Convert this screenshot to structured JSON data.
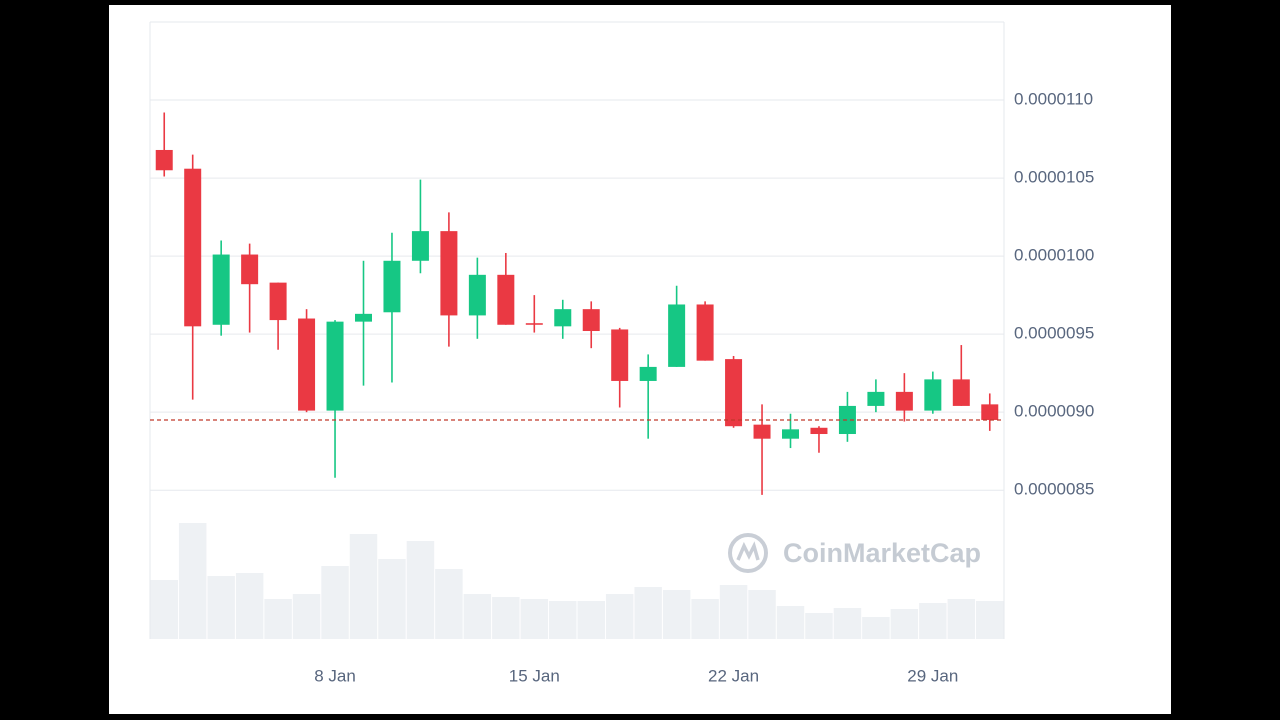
{
  "chart_data": {
    "type": "candlestick",
    "x": [
      "2 Jan",
      "3 Jan",
      "4 Jan",
      "5 Jan",
      "6 Jan",
      "7 Jan",
      "8 Jan",
      "9 Jan",
      "10 Jan",
      "11 Jan",
      "12 Jan",
      "13 Jan",
      "14 Jan",
      "15 Jan",
      "16 Jan",
      "17 Jan",
      "18 Jan",
      "19 Jan",
      "20 Jan",
      "21 Jan",
      "22 Jan",
      "23 Jan",
      "24 Jan",
      "25 Jan",
      "26 Jan",
      "27 Jan",
      "28 Jan",
      "29 Jan",
      "30 Jan",
      "31 Jan"
    ],
    "open": [
      1.068e-05,
      1.056e-05,
      9.56e-06,
      1.001e-05,
      9.83e-06,
      9.6e-06,
      9.01e-06,
      9.58e-06,
      9.64e-06,
      9.97e-06,
      1.016e-05,
      9.62e-06,
      9.88e-06,
      9.57e-06,
      9.55e-06,
      9.66e-06,
      9.53e-06,
      9.2e-06,
      9.29e-06,
      9.69e-06,
      9.34e-06,
      8.92e-06,
      8.83e-06,
      8.9e-06,
      8.86e-06,
      9.04e-06,
      9.13e-06,
      9.01e-06,
      9.21e-06,
      9.05e-06
    ],
    "high": [
      1.092e-05,
      1.065e-05,
      1.01e-05,
      1.008e-05,
      9.83e-06,
      9.66e-06,
      9.59e-06,
      9.97e-06,
      1.015e-05,
      1.049e-05,
      1.028e-05,
      9.99e-06,
      1.002e-05,
      9.75e-06,
      9.72e-06,
      9.71e-06,
      9.54e-06,
      9.37e-06,
      9.81e-06,
      9.71e-06,
      9.36e-06,
      9.05e-06,
      8.99e-06,
      8.91e-06,
      9.13e-06,
      9.21e-06,
      9.25e-06,
      9.26e-06,
      9.43e-06,
      9.12e-06
    ],
    "low": [
      1.051e-05,
      9.08e-06,
      9.49e-06,
      9.51e-06,
      9.4e-06,
      9e-06,
      8.58e-06,
      9.17e-06,
      9.19e-06,
      9.89e-06,
      9.42e-06,
      9.47e-06,
      9.56e-06,
      9.51e-06,
      9.47e-06,
      9.41e-06,
      9.03e-06,
      8.83e-06,
      9.29e-06,
      9.33e-06,
      8.9e-06,
      8.47e-06,
      8.77e-06,
      8.74e-06,
      8.81e-06,
      9e-06,
      8.94e-06,
      8.99e-06,
      9.04e-06,
      8.88e-06
    ],
    "close": [
      1.055e-05,
      9.55e-06,
      1.001e-05,
      9.82e-06,
      9.59e-06,
      9.01e-06,
      9.58e-06,
      9.63e-06,
      9.97e-06,
      1.016e-05,
      9.62e-06,
      9.88e-06,
      9.56e-06,
      9.56e-06,
      9.66e-06,
      9.52e-06,
      9.2e-06,
      9.29e-06,
      9.69e-06,
      9.33e-06,
      8.91e-06,
      8.83e-06,
      8.89e-06,
      8.86e-06,
      9.04e-06,
      9.13e-06,
      9.01e-06,
      9.21e-06,
      9.04e-06,
      8.95e-06
    ],
    "up_color": "#16c784",
    "down_color": "#ea3943",
    "volume": {
      "values": [
        59,
        116,
        63,
        66,
        40,
        45,
        73,
        105,
        80,
        98,
        70,
        45,
        42,
        40,
        38,
        38,
        45,
        52,
        49,
        40,
        54,
        49,
        33,
        26,
        31,
        22,
        30,
        36,
        40,
        38
      ],
      "color": "#eef1f4"
    },
    "current_price": 8.95e-06,
    "current_price_color": "#c0392b",
    "ylim": [
      8.45e-06,
      1.15e-05
    ],
    "yticks": [
      {
        "value": 8.5e-06,
        "label": "0.0000085"
      },
      {
        "value": 9e-06,
        "label": "0.0000090"
      },
      {
        "value": 9.5e-06,
        "label": "0.0000095"
      },
      {
        "value": 1e-05,
        "label": "0.0000100"
      },
      {
        "value": 1.05e-05,
        "label": "0.0000105"
      },
      {
        "value": 1.1e-05,
        "label": "0.0000110"
      }
    ],
    "xticks": [
      "8 Jan",
      "15 Jan",
      "22 Jan",
      "29 Jan"
    ],
    "grid": true,
    "watermark": "CoinMarketCap"
  }
}
